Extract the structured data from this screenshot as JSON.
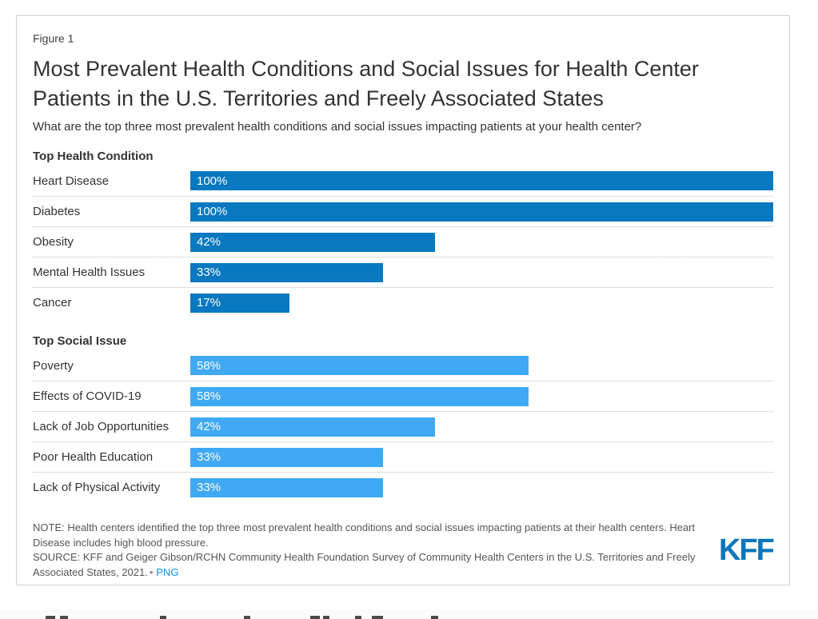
{
  "figure": {
    "label": "Figure 1",
    "title": "Most Prevalent Health Conditions and Social Issues for Health Center Patients in the U.S. Territories and Freely Associated States",
    "subtitle": "What are the top three most prevalent health conditions and social issues impacting patients at your health center?"
  },
  "chart_data": {
    "type": "bar",
    "orientation": "horizontal",
    "title": "Most Prevalent Health Conditions and Social Issues for Health Center Patients in the U.S. Territories and Freely Associated States",
    "subtitle": "What are the top three most prevalent health conditions and social issues impacting patients at your health center?",
    "value_format": "percent",
    "xlim": [
      0,
      100
    ],
    "grid": false,
    "legend": "none",
    "series": [
      {
        "name": "Top Health Condition",
        "color": "#0878c0",
        "categories": [
          "Heart Disease",
          "Diabetes",
          "Obesity",
          "Mental Health Issues",
          "Cancer"
        ],
        "values": [
          100,
          100,
          42,
          33,
          17
        ],
        "labels": [
          "100%",
          "100%",
          "42%",
          "33%",
          "17%"
        ]
      },
      {
        "name": "Top Social Issue",
        "color": "#3fa9f5",
        "categories": [
          "Poverty",
          "Effects of COVID-19",
          "Lack of Job Opportunities",
          "Poor Health Education",
          "Lack of Physical Activity"
        ],
        "values": [
          58,
          58,
          42,
          33,
          33
        ],
        "labels": [
          "58%",
          "58%",
          "42%",
          "33%",
          "33%"
        ]
      }
    ]
  },
  "footer": {
    "note_text": "NOTE: Health centers identified the top three most prevalent health conditions and social issues impacting patients at their health centers. Heart Disease includes high blood pressure.",
    "source_text": "SOURCE: KFF and Geiger Gibson/RCHN Community Health Foundation Survey of Community Health Centers in the U.S. Territories and Freely Associated States, 2021.",
    "bullet": "•",
    "png_link_label": "PNG",
    "logo_text": "KFF"
  },
  "colors": {
    "health_bar": "#0878c0",
    "social_bar": "#3fa9f5",
    "link_blue": "#168edd",
    "logo_blue": "#0b76bc",
    "card_border": "#d0d0d0",
    "separator": "#bfbfbf",
    "text_dark": "#333333",
    "text_note": "#555555",
    "bar_value_text": "#ffffff"
  }
}
